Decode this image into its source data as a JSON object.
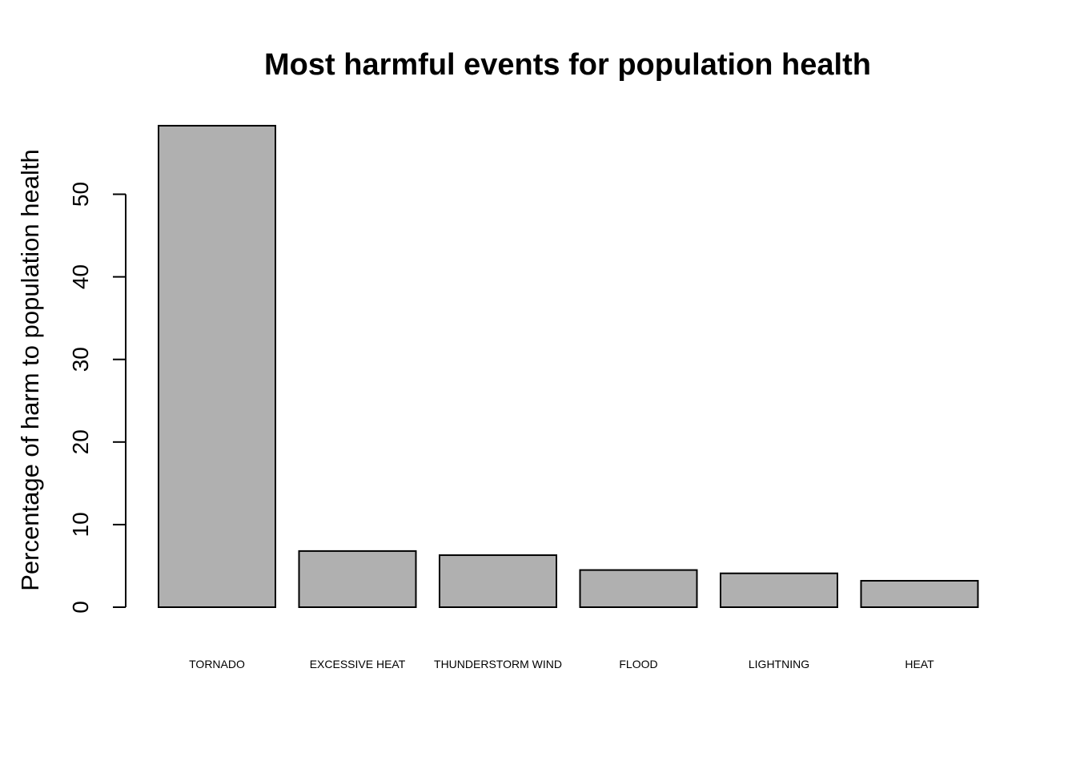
{
  "chart_data": {
    "type": "bar",
    "title": "Most harmful events for population health",
    "xlabel": "",
    "ylabel": "Percentage of harm to population health",
    "categories": [
      "TORNADO",
      "EXCESSIVE HEAT",
      "THUNDERSTORM WIND",
      "FLOOD",
      "LIGHTNING",
      "HEAT"
    ],
    "values": [
      58.3,
      6.8,
      6.3,
      4.5,
      4.1,
      3.2
    ],
    "yticks": [
      0,
      10,
      20,
      30,
      40,
      50
    ],
    "ylim": [
      0,
      58.3
    ],
    "grid": false,
    "legend": "none",
    "colors": {
      "bar_fill": "#b0b0b0",
      "bar_stroke": "#000000",
      "text": "#000000",
      "background": "#ffffff"
    }
  }
}
